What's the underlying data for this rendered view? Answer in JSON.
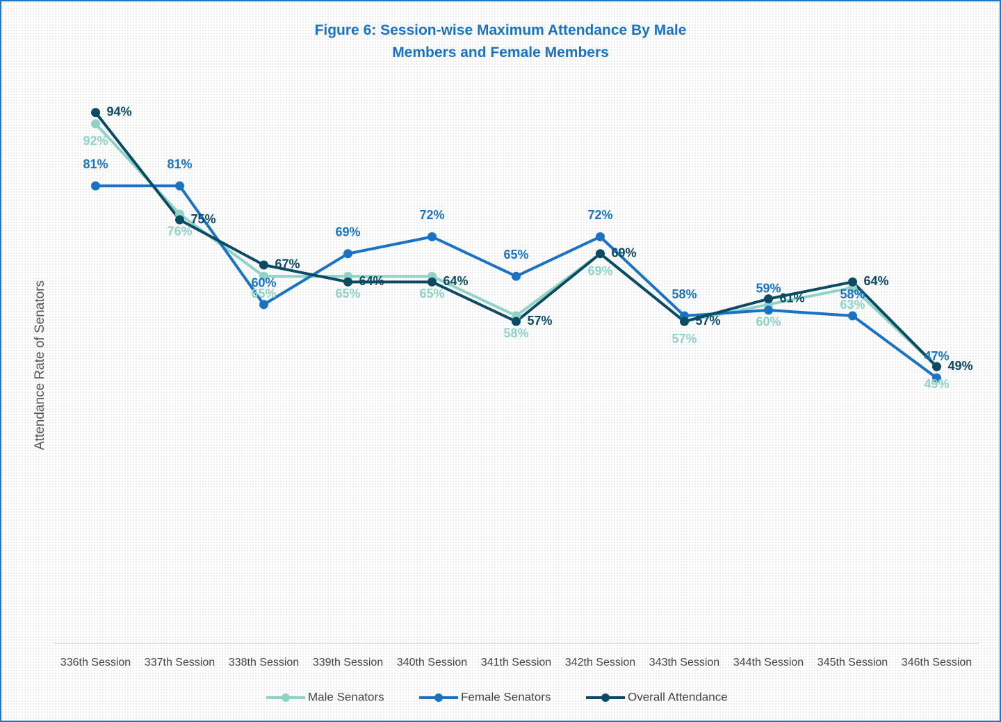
{
  "chart_data": {
    "type": "line",
    "title": "Figure 6: Session-wise Maximum Attendance By Male Members and Female Members",
    "y_label": "Attendance Rate of Senators",
    "categories": [
      "336th Session",
      "337th Session",
      "338th Session",
      "339th Session",
      "340th Session",
      "341th Session",
      "342th Session",
      "343th Session",
      "344th Session",
      "345th Session",
      "346th Session"
    ],
    "ylim": [
      0,
      100
    ],
    "grid": false,
    "legend": "bottom",
    "series": [
      {
        "name": "Male Senators",
        "color": "#8fd3c7",
        "values": [
          92,
          76,
          65,
          65,
          65,
          58,
          69,
          57,
          60,
          63,
          49
        ],
        "value_labels": [
          "92%",
          "76%",
          "65%",
          "65%",
          "65%",
          "58%",
          "69%",
          "57%",
          "60%",
          "63%",
          "49%"
        ]
      },
      {
        "name": "Female Senators",
        "color": "#1a73c2",
        "values": [
          81,
          81,
          60,
          69,
          72,
          65,
          72,
          58,
          59,
          58,
          47
        ],
        "value_labels": [
          "81%",
          "81%",
          "60%",
          "69%",
          "72%",
          "65%",
          "72%",
          "58%",
          "59%",
          "58%",
          "47%"
        ]
      },
      {
        "name": "Overall Attendance",
        "color": "#0b4a63",
        "values": [
          94,
          75,
          67,
          64,
          64,
          57,
          69,
          57,
          61,
          64,
          49
        ],
        "value_labels": [
          "94%",
          "75%",
          "67%",
          "64%",
          "64%",
          "57%",
          "69%",
          "57%",
          "61%",
          "64%",
          "49%"
        ]
      }
    ]
  }
}
